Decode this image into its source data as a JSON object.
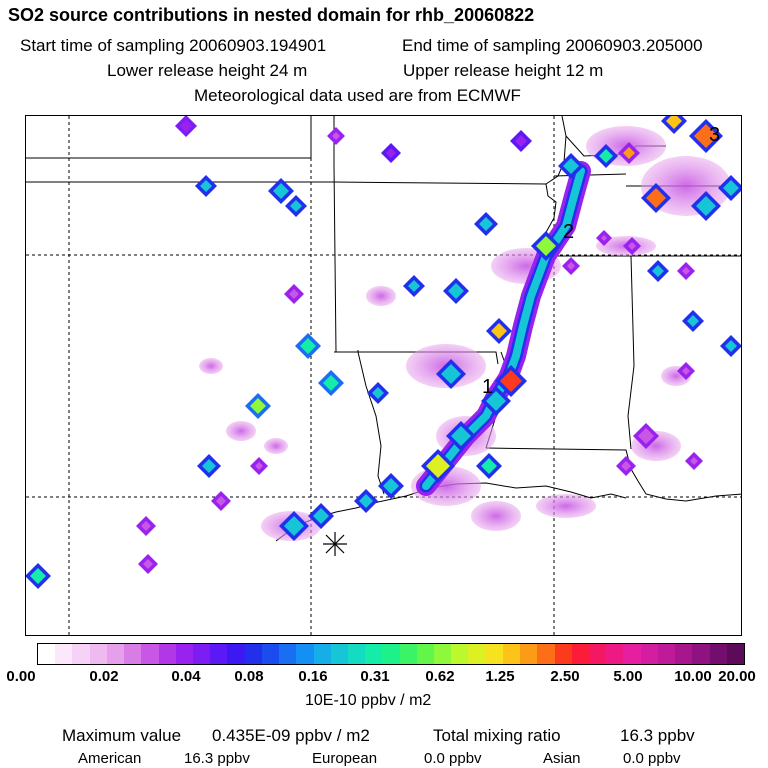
{
  "header": {
    "title": "SO2 source contributions in nested domain for rhb_20060822",
    "start_time": "Start time of sampling 20060903.194901",
    "end_time": "End time of sampling 20060903.205000",
    "lower_height": "Lower release height   24 m",
    "upper_height": "Upper release height   12 m",
    "met_source": "Meteorological data used are from ECMWF"
  },
  "map": {
    "markers": [
      "1",
      "2",
      "3"
    ],
    "station_symbol": "asterisk-icon"
  },
  "colorbar": {
    "colors": [
      "#ffffff",
      "#fbe8fb",
      "#f6d3f6",
      "#efbaf0",
      "#e6a0eb",
      "#d87de6",
      "#c757e4",
      "#b237e6",
      "#9a22ee",
      "#7e1cf4",
      "#5d18f6",
      "#3c18f2",
      "#2230ee",
      "#1a4cf0",
      "#1a6ef2",
      "#1490f4",
      "#16aee8",
      "#16c6d6",
      "#14dcc2",
      "#14ecaa",
      "#1ef08a",
      "#3af466",
      "#62f64a",
      "#8ef83a",
      "#bbf82c",
      "#ddf024",
      "#f6e21e",
      "#fcc418",
      "#fc9c16",
      "#fc6e18",
      "#fc3a1e",
      "#fc1c3a",
      "#f41862",
      "#ee1a84",
      "#e61ea0",
      "#d41ea2",
      "#be1a9a",
      "#a8168e",
      "#8e1280",
      "#740e6e",
      "#5c0a5a"
    ],
    "ticks": [
      "0.00",
      "0.02",
      "0.04",
      "0.08",
      "0.16",
      "0.31",
      "0.62",
      "1.25",
      "2.50",
      "5.00",
      "10.00",
      "20.00"
    ],
    "units": "10E-10 ppbv / m2"
  },
  "footer": {
    "max_label": "Maximum value",
    "max_value": "0.435E-09 ppbv / m2",
    "total_label": "Total mixing ratio",
    "total_value": "16.3 ppbv",
    "american_label": "American",
    "american_value": "16.3 ppbv",
    "european_label": "European",
    "european_value": "0.0 ppbv",
    "asian_label": "Asian",
    "asian_value": "0.0 ppbv"
  }
}
